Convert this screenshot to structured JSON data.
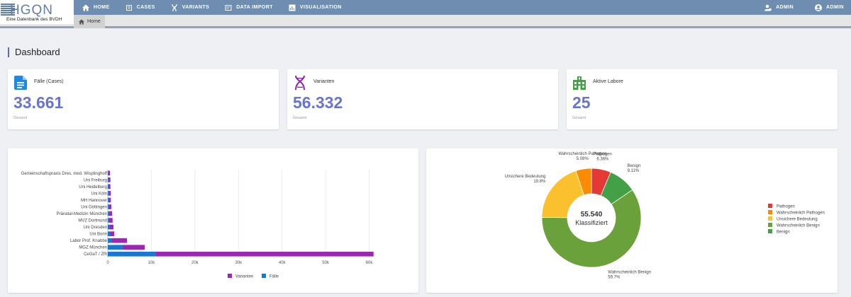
{
  "brand": {
    "name": "HGQN",
    "subtitle": "Eine Datenbank des BVDH"
  },
  "nav": {
    "items": [
      {
        "label": "HOME",
        "icon": "home-icon"
      },
      {
        "label": "CASES",
        "icon": "case-icon"
      },
      {
        "label": "VARIANTS",
        "icon": "dna-icon"
      },
      {
        "label": "DATA IMPORT",
        "icon": "import-icon"
      },
      {
        "label": "VISUALISATION",
        "icon": "chart-icon"
      }
    ],
    "right": [
      {
        "label": "ADMIN",
        "icon": "admin-icon"
      },
      {
        "label": "ADMIN",
        "icon": "account-icon"
      }
    ]
  },
  "breadcrumb": {
    "label": "Home"
  },
  "page": {
    "title": "Dashboard"
  },
  "stats": [
    {
      "label": "Fälle (Cases)",
      "value": "33.661",
      "sub": "Gesamt",
      "icon": "document-icon",
      "color": "#1e88e5"
    },
    {
      "label": "Varianten",
      "value": "56.332",
      "sub": "Gesamt",
      "icon": "dna-icon",
      "color": "#8e24aa"
    },
    {
      "label": "Aktive Labore",
      "value": "25",
      "sub": "Gesamt",
      "icon": "building-icon",
      "color": "#43a047"
    }
  ],
  "colors": {
    "accent": "#6875cf",
    "nav": "#6e8db0",
    "varianten": "#9c27b0",
    "faelle": "#1976d2"
  },
  "chart_data": [
    {
      "type": "bar",
      "orientation": "horizontal",
      "stacked": true,
      "categories": [
        "Gemeinschaftspraxis Dres. med. Wisplinghoff",
        "Uni Freiburg",
        "Uni Heidelberg",
        "Uni Köln",
        "MH Hannover",
        "Uni Göttingen",
        "Pränatal-Medizin München",
        "MVZ Dortmund",
        "Uni Dresden",
        "Uni Bonn",
        "Labor Prof. Knabbe",
        "MGZ München",
        "CeGaT / Zfh"
      ],
      "series": [
        {
          "name": "Fälle",
          "color": "#1976d2",
          "values": [
            100,
            150,
            150,
            200,
            200,
            200,
            300,
            300,
            400,
            500,
            900,
            3500,
            11000
          ]
        },
        {
          "name": "Varianten",
          "color": "#9c27b0",
          "values": [
            400,
            450,
            450,
            500,
            500,
            600,
            700,
            800,
            900,
            1000,
            3500,
            5000,
            50000
          ]
        }
      ],
      "xlim": [
        0,
        63000
      ],
      "xticks": [
        0,
        10000,
        20000,
        30000,
        40000,
        50000,
        60000
      ],
      "xticklabels": [
        "0",
        "10k",
        "20k",
        "30k",
        "40k",
        "50k",
        "60k"
      ],
      "legend": [
        "Varianten",
        "Fälle"
      ]
    },
    {
      "type": "pie",
      "donut": true,
      "center_value": "55.540",
      "center_label": "Klassifiziert",
      "slices": [
        {
          "label": "Pathogen",
          "value": 6.36,
          "pct": "6.36%",
          "color": "#e53935"
        },
        {
          "label": "Benign",
          "value": 9.11,
          "pct": "9.11%",
          "color": "#43a047"
        },
        {
          "label": "Wahrscheinlich Benign",
          "value": 59.7,
          "pct": "59.7%",
          "color": "#6aa13a"
        },
        {
          "label": "Unsichere Bedeutung",
          "value": 19.8,
          "pct": "19.8%",
          "color": "#fbc02d"
        },
        {
          "label": "Wahrscheinlich Pathogen",
          "value": 5.08,
          "pct": "5.08%",
          "color": "#fb8c00"
        }
      ],
      "legend": [
        {
          "label": "Pathogen",
          "color": "#e53935"
        },
        {
          "label": "Wahrscheinlich Pathogen",
          "color": "#fb8c00"
        },
        {
          "label": "Unsichere Bedeutung",
          "color": "#fbc02d"
        },
        {
          "label": "Wahrscheinlich Benign",
          "color": "#6aa13a"
        },
        {
          "label": "Benign",
          "color": "#43a047"
        }
      ]
    }
  ]
}
